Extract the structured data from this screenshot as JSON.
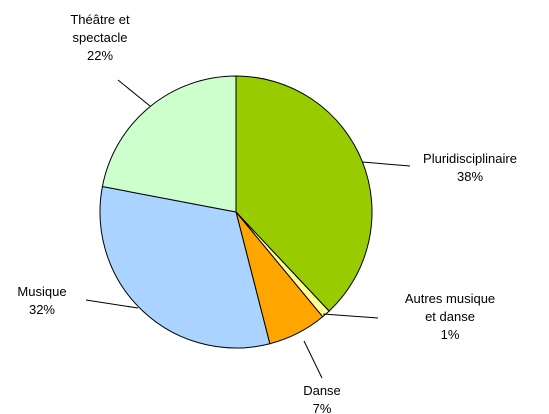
{
  "chart_data": {
    "type": "pie",
    "categories": [
      "Pluridisciplinaire",
      "Autres musique et danse",
      "Danse",
      "Musique",
      "Théâtre et spectacle"
    ],
    "values": [
      38,
      1,
      7,
      32,
      22
    ],
    "value_labels": [
      "38%",
      "1%",
      "7%",
      "32%",
      "22%"
    ],
    "colors": [
      "#99cc00",
      "#ffff99",
      "#ffa500",
      "#aad4ff",
      "#ccffcc"
    ]
  }
}
